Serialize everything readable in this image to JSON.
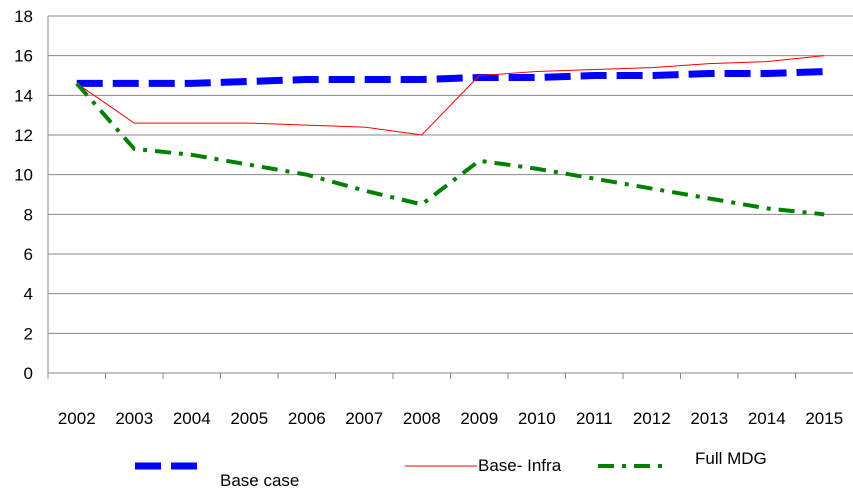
{
  "chart_data": {
    "type": "line",
    "categories": [
      "2002",
      "2003",
      "2004",
      "2005",
      "2006",
      "2007",
      "2008",
      "2009",
      "2010",
      "2011",
      "2012",
      "2013",
      "2014",
      "2015"
    ],
    "series": [
      {
        "name": "Base case",
        "color": "#0000ff",
        "values": [
          14.6,
          14.6,
          14.6,
          14.7,
          14.8,
          14.8,
          14.8,
          14.9,
          14.9,
          15.0,
          15.0,
          15.1,
          15.1,
          15.2
        ]
      },
      {
        "name": "Base- Infra",
        "color": "#ff0000",
        "values": [
          14.6,
          12.6,
          12.6,
          12.6,
          12.5,
          12.4,
          12.0,
          15.0,
          15.2,
          15.3,
          15.4,
          15.6,
          15.7,
          16.0
        ]
      },
      {
        "name": "Full MDG",
        "color": "#008000",
        "values": [
          14.6,
          11.3,
          11.0,
          10.5,
          10.0,
          9.2,
          8.5,
          10.7,
          10.3,
          9.8,
          9.3,
          8.8,
          8.3,
          8.0
        ]
      }
    ],
    "ylim": [
      0,
      18
    ],
    "yticks": [
      0,
      2,
      4,
      6,
      8,
      10,
      12,
      14,
      16,
      18
    ],
    "grid": true
  }
}
